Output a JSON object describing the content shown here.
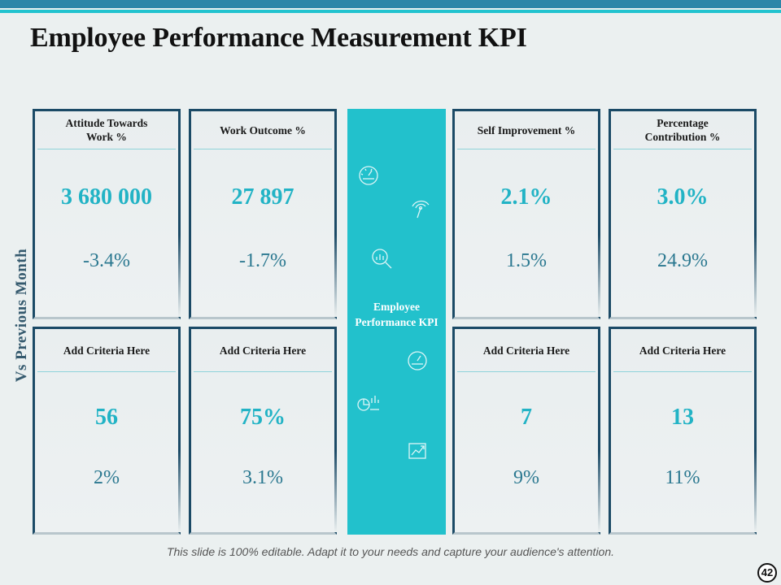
{
  "slide": {
    "title": "Employee Performance Measurement KPI",
    "side_label": "Vs Previous Month",
    "center_title": "Employee Performance KPI",
    "footer": "This slide is 100% editable. Adapt it to your needs and capture your audience's attention.",
    "page_number": "42"
  },
  "colors": {
    "accent_teal": "#22c1cc",
    "value_teal": "#22b3c5",
    "change_blue": "#2b7890",
    "border_navy": "#1b4a66"
  },
  "cards": [
    {
      "title": "Attitude Towards Work %",
      "value": "3 680 000",
      "change": "-3.4%"
    },
    {
      "title": "Work Outcome %",
      "value": "27 897",
      "change": "-1.7%"
    },
    {
      "title": "Self Improvement %",
      "value": "2.1%",
      "change": "1.5%"
    },
    {
      "title": "Percentage Contribution %",
      "value": "3.0%",
      "change": "24.9%"
    },
    {
      "title": "Add Criteria Here",
      "value": "56",
      "change": "2%"
    },
    {
      "title": "Add Criteria Here",
      "value": "75%",
      "change": "3.1%"
    },
    {
      "title": "Add Criteria Here",
      "value": "7",
      "change": "9%"
    },
    {
      "title": "Add Criteria Here",
      "value": "13",
      "change": "11%"
    }
  ],
  "center_icons": [
    "speedometer-icon",
    "gauge-icon",
    "magnifier-chart-icon",
    "speedometer-icon",
    "analytics-dashboard-icon",
    "growth-chart-icon"
  ]
}
